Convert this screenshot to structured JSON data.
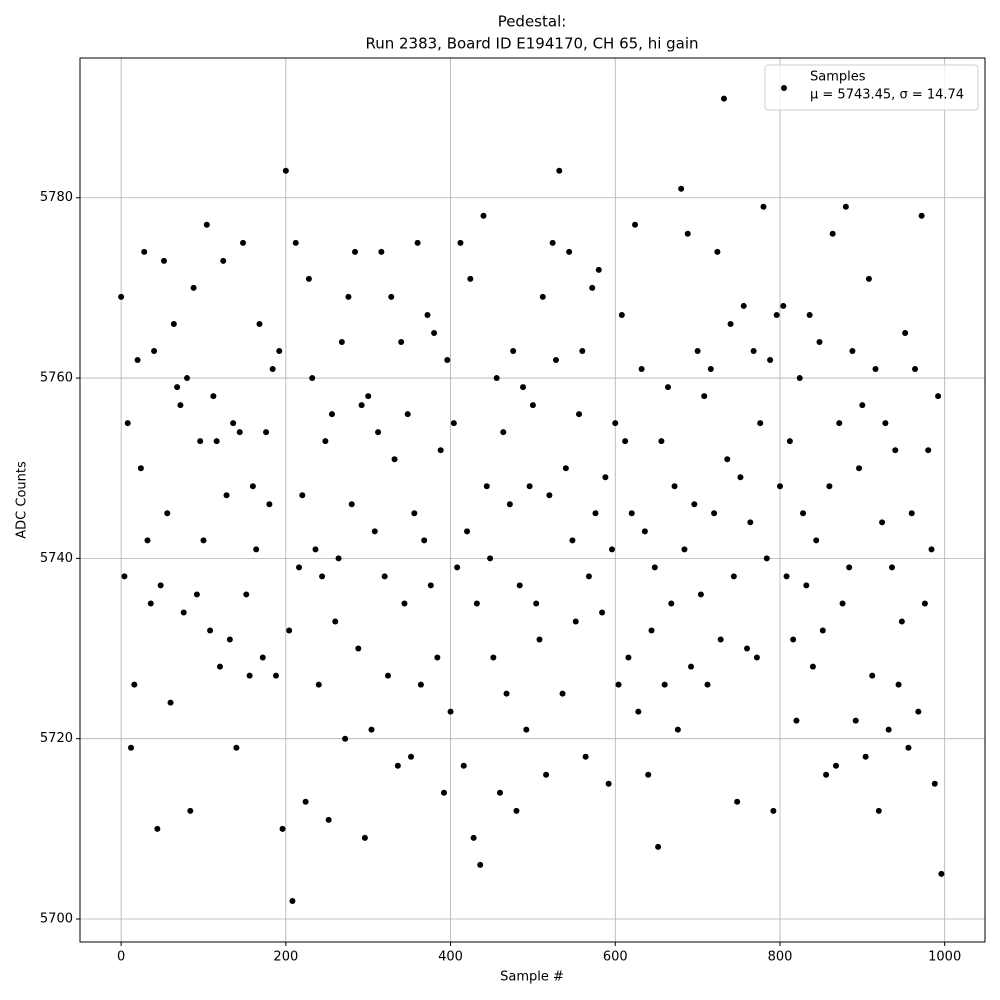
{
  "chart_data": {
    "type": "scatter",
    "title": "Pedestal:",
    "subtitle": "Run 2383, Board ID E194170, CH 65, hi gain",
    "x_label": "Sample #",
    "y_label": "ADC Counts",
    "legend_position": "upper right",
    "legend_note": "μ = 5743.45, σ = 14.74",
    "grid": true,
    "xlim": [
      -49.95,
      1048.95
    ],
    "ylim": [
      5697.45,
      5795.5
    ],
    "xticks": [
      0,
      200,
      400,
      600,
      800,
      1000
    ],
    "yticks": [
      5700,
      5720,
      5740,
      5760,
      5780
    ],
    "series": [
      {
        "name": "Samples",
        "color": "#000000",
        "x": [
          0,
          4,
          8,
          12,
          16,
          20,
          24,
          28,
          32,
          36,
          40,
          44,
          48,
          52,
          56,
          60,
          64,
          68,
          72,
          76,
          80,
          84,
          88,
          92,
          96,
          100,
          104,
          108,
          112,
          116,
          120,
          124,
          128,
          132,
          136,
          140,
          144,
          148,
          152,
          156,
          160,
          164,
          168,
          172,
          176,
          180,
          184,
          188,
          192,
          196,
          200,
          204,
          208,
          212,
          216,
          220,
          224,
          228,
          232,
          236,
          240,
          244,
          248,
          252,
          256,
          260,
          264,
          268,
          272,
          276,
          280,
          284,
          288,
          292,
          296,
          300,
          304,
          308,
          312,
          316,
          320,
          324,
          328,
          332,
          336,
          340,
          344,
          348,
          352,
          356,
          360,
          364,
          368,
          372,
          376,
          380,
          384,
          388,
          392,
          396,
          400,
          404,
          408,
          412,
          416,
          420,
          424,
          428,
          432,
          436,
          440,
          444,
          448,
          452,
          456,
          460,
          464,
          468,
          472,
          476,
          480,
          484,
          488,
          492,
          496,
          500,
          504,
          508,
          512,
          516,
          520,
          524,
          528,
          532,
          536,
          540,
          544,
          548,
          552,
          556,
          560,
          564,
          568,
          572,
          576,
          580,
          584,
          588,
          592,
          596,
          600,
          604,
          608,
          612,
          616,
          620,
          624,
          628,
          632,
          636,
          640,
          644,
          648,
          652,
          656,
          660,
          664,
          668,
          672,
          676,
          680,
          684,
          688,
          692,
          696,
          700,
          704,
          708,
          712,
          716,
          720,
          724,
          728,
          732,
          736,
          740,
          744,
          748,
          752,
          756,
          760,
          764,
          768,
          772,
          776,
          780,
          784,
          788,
          792,
          796,
          800,
          804,
          808,
          812,
          816,
          820,
          824,
          828,
          832,
          836,
          840,
          844,
          848,
          852,
          856,
          860,
          864,
          868,
          872,
          876,
          880,
          884,
          888,
          892,
          896,
          900,
          904,
          908,
          912,
          916,
          920,
          924,
          928,
          932,
          936,
          940,
          944,
          948,
          952,
          956,
          960,
          964,
          968,
          972,
          976,
          980,
          984,
          988,
          992,
          996
        ],
        "values": [
          5769,
          5738,
          5755,
          5719,
          5726,
          5762,
          5750,
          5774,
          5742,
          5735,
          5763,
          5710,
          5737,
          5773,
          5745,
          5724,
          5766,
          5759,
          5757,
          5734,
          5760,
          5712,
          5770,
          5736,
          5753,
          5742,
          5777,
          5732,
          5758,
          5753,
          5728,
          5773,
          5747,
          5731,
          5755,
          5719,
          5754,
          5775,
          5736,
          5727,
          5748,
          5741,
          5766,
          5729,
          5754,
          5746,
          5761,
          5727,
          5763,
          5710,
          5783,
          5732,
          5702,
          5775,
          5739,
          5747,
          5713,
          5771,
          5760,
          5741,
          5726,
          5738,
          5753,
          5711,
          5756,
          5733,
          5740,
          5764,
          5720,
          5769,
          5746,
          5774,
          5730,
          5757,
          5709,
          5758,
          5721,
          5743,
          5754,
          5774,
          5738,
          5727,
          5769,
          5751,
          5717,
          5764,
          5735,
          5756,
          5718,
          5745,
          5775,
          5726,
          5742,
          5767,
          5737,
          5765,
          5729,
          5752,
          5714,
          5762,
          5723,
          5755,
          5739,
          5775,
          5717,
          5743,
          5771,
          5709,
          5735,
          5706,
          5778,
          5748,
          5740,
          5729,
          5760,
          5714,
          5754,
          5725,
          5746,
          5763,
          5712,
          5737,
          5759,
          5721,
          5748,
          5757,
          5735,
          5731,
          5769,
          5716,
          5747,
          5775,
          5762,
          5783,
          5725,
          5750,
          5774,
          5742,
          5733,
          5756,
          5763,
          5718,
          5738,
          5770,
          5745,
          5772,
          5734,
          5749,
          5715,
          5741,
          5755,
          5726,
          5767,
          5753,
          5729,
          5745,
          5777,
          5723,
          5761,
          5743,
          5716,
          5732,
          5739,
          5708,
          5753,
          5726,
          5759,
          5735,
          5748,
          5721,
          5781,
          5741,
          5776,
          5728,
          5746,
          5763,
          5736,
          5758,
          5726,
          5761,
          5745,
          5774,
          5731,
          5791,
          5751,
          5766,
          5738,
          5713,
          5749,
          5768,
          5730,
          5744,
          5763,
          5729,
          5755,
          5779,
          5740,
          5762,
          5712,
          5767,
          5748,
          5768,
          5738,
          5753,
          5731,
          5722,
          5760,
          5745,
          5737,
          5767,
          5728,
          5742,
          5764,
          5732,
          5716,
          5748,
          5776,
          5717,
          5755,
          5735,
          5779,
          5739,
          5763,
          5722,
          5750,
          5757,
          5718,
          5771,
          5727,
          5761,
          5712,
          5744,
          5755,
          5721,
          5739,
          5752,
          5726,
          5733,
          5765,
          5719,
          5745,
          5761,
          5723,
          5778,
          5735,
          5752,
          5741,
          5715,
          5758,
          5705
        ]
      }
    ]
  }
}
